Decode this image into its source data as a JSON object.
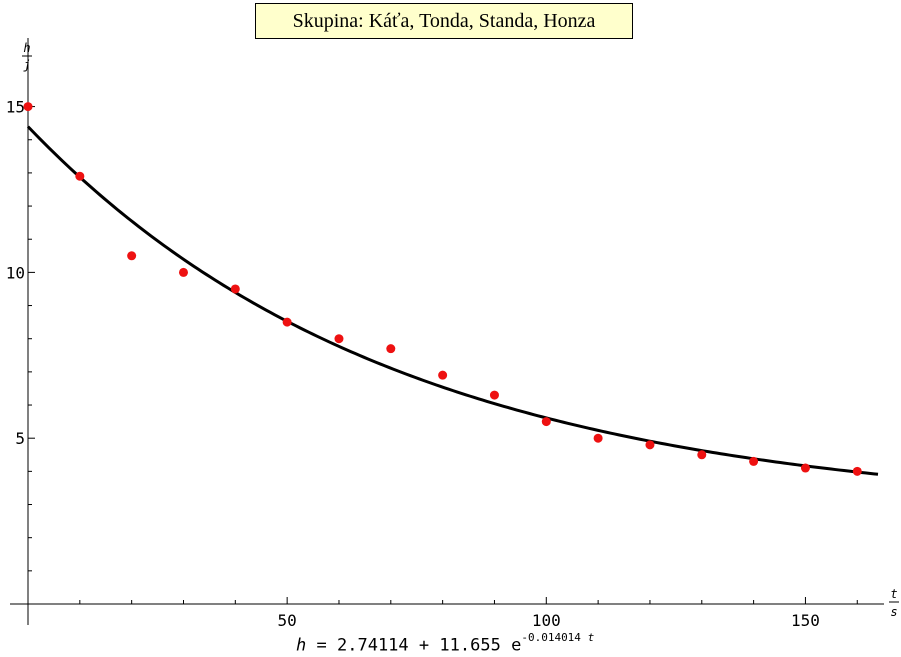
{
  "chart_data": {
    "type": "scatter",
    "title": "Skupina: Káťa, Tonda, Standa, Honza",
    "xlabel": {
      "num": "t",
      "den": "s"
    },
    "ylabel": {
      "num": "h",
      "den": "j"
    },
    "xlim": [
      0,
      164
    ],
    "ylim": [
      0,
      15.5
    ],
    "xticks": [
      50,
      100,
      150
    ],
    "yticks": [
      5,
      10,
      15
    ],
    "grid": false,
    "series": [
      {
        "type": "scatter",
        "color": "#ee1111",
        "points": [
          [
            0,
            15.0
          ],
          [
            10,
            12.9
          ],
          [
            20,
            10.5
          ],
          [
            30,
            10.0
          ],
          [
            40,
            9.5
          ],
          [
            50,
            8.5
          ],
          [
            60,
            8.0
          ],
          [
            70,
            7.7
          ],
          [
            80,
            6.9
          ],
          [
            90,
            6.3
          ],
          [
            100,
            5.5
          ],
          [
            110,
            5.0
          ],
          [
            120,
            4.8
          ],
          [
            130,
            4.5
          ],
          [
            140,
            4.3
          ],
          [
            150,
            4.1
          ],
          [
            160,
            4.0
          ]
        ]
      },
      {
        "type": "line",
        "color": "#000000",
        "fit": {
          "a": 2.74114,
          "b": 11.655,
          "k": 0.014014
        }
      }
    ],
    "formula": {
      "var": "h",
      "eq": "=",
      "a": "2.74114",
      "plus": "+",
      "b": "11.655",
      "e": "e",
      "exp": "-0.014014",
      "t": "t"
    }
  }
}
